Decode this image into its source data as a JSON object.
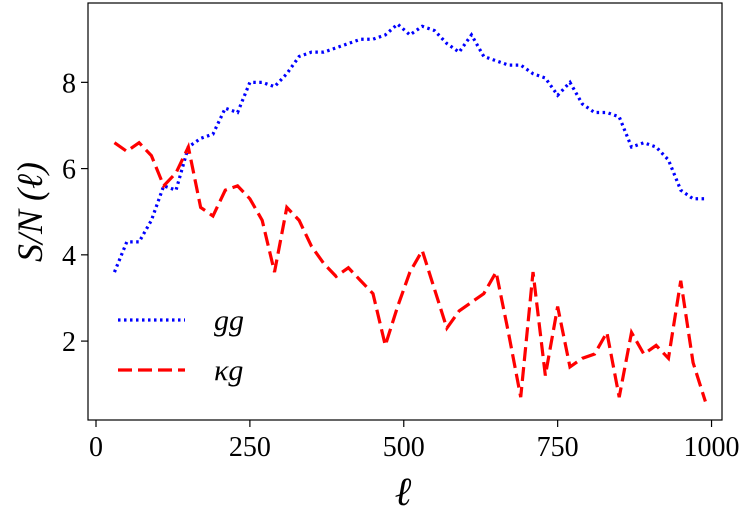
{
  "chart_data": {
    "type": "line",
    "xlabel": "ℓ",
    "ylabel": "S/N (ℓ)",
    "x": [
      30,
      50,
      70,
      90,
      110,
      130,
      150,
      170,
      190,
      210,
      230,
      250,
      270,
      290,
      310,
      330,
      350,
      370,
      390,
      410,
      430,
      450,
      470,
      490,
      510,
      530,
      550,
      570,
      590,
      610,
      630,
      650,
      670,
      690,
      710,
      730,
      750,
      770,
      790,
      810,
      830,
      850,
      870,
      890,
      910,
      930,
      950,
      970,
      990
    ],
    "series": [
      {
        "name": "gg",
        "color": "#0000ff",
        "style": "dotted",
        "values": [
          3.6,
          4.3,
          4.3,
          4.8,
          5.6,
          5.5,
          6.5,
          6.7,
          6.8,
          7.4,
          7.3,
          8.0,
          8.0,
          7.9,
          8.2,
          8.6,
          8.7,
          8.7,
          8.8,
          8.9,
          9.0,
          9.0,
          9.1,
          9.35,
          9.1,
          9.3,
          9.2,
          8.9,
          8.7,
          9.1,
          8.6,
          8.5,
          8.4,
          8.4,
          8.2,
          8.1,
          7.7,
          8.0,
          7.5,
          7.3,
          7.3,
          7.2,
          6.5,
          6.6,
          6.5,
          6.2,
          5.5,
          5.3,
          5.3
        ]
      },
      {
        "name": "κg",
        "color": "#ff0000",
        "style": "dashed",
        "values": [
          6.6,
          6.4,
          6.6,
          6.3,
          5.6,
          5.9,
          6.5,
          5.1,
          4.9,
          5.5,
          5.6,
          5.3,
          4.8,
          3.6,
          5.1,
          4.8,
          4.2,
          3.8,
          3.5,
          3.7,
          3.4,
          3.1,
          1.9,
          2.8,
          3.6,
          4.1,
          3.2,
          2.3,
          2.7,
          2.9,
          3.1,
          3.6,
          2.2,
          0.7,
          3.6,
          1.2,
          2.8,
          1.4,
          1.6,
          1.7,
          2.2,
          0.7,
          2.2,
          1.7,
          1.9,
          1.6,
          3.4,
          1.5,
          0.6
        ]
      }
    ],
    "xlim": [
      -13,
      1017
    ],
    "ylim": [
      0.17,
      9.84
    ],
    "xticks": [
      0,
      250,
      500,
      750,
      1000
    ],
    "yticks": [
      2,
      4,
      6,
      8
    ],
    "legend": "lower left"
  }
}
